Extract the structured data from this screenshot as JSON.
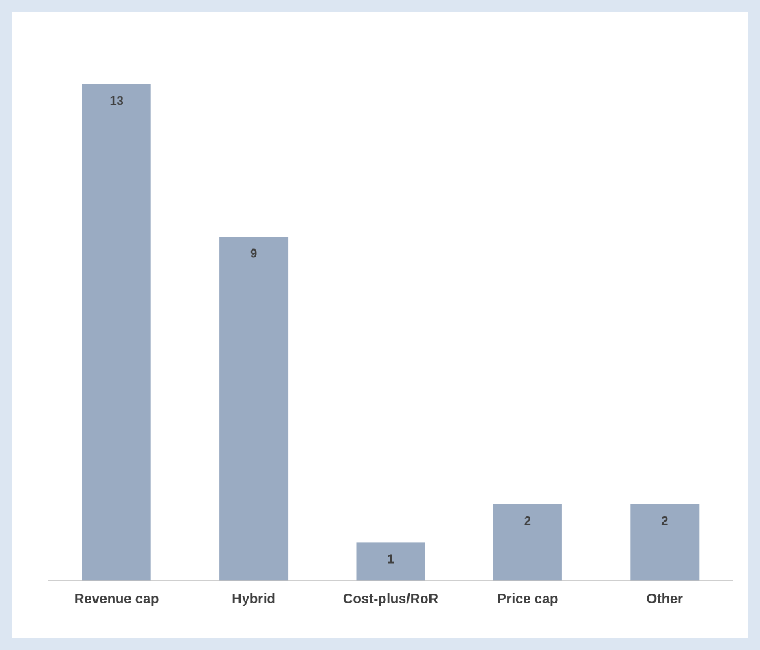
{
  "chart_data": {
    "type": "bar",
    "categories": [
      "Revenue cap",
      "Hybrid",
      "Cost-plus/RoR",
      "Price cap",
      "Other"
    ],
    "values": [
      13,
      9,
      1,
      2,
      2
    ],
    "data_labels": [
      "13",
      "9",
      "1",
      "2",
      "2"
    ],
    "title": "",
    "xlabel": "",
    "ylabel": "",
    "ylim": [
      0,
      13
    ],
    "grid": false,
    "legend": "none",
    "bar_color": "#9aabc2",
    "axis_color": "#bfbfbf",
    "label_color": "#404040"
  }
}
